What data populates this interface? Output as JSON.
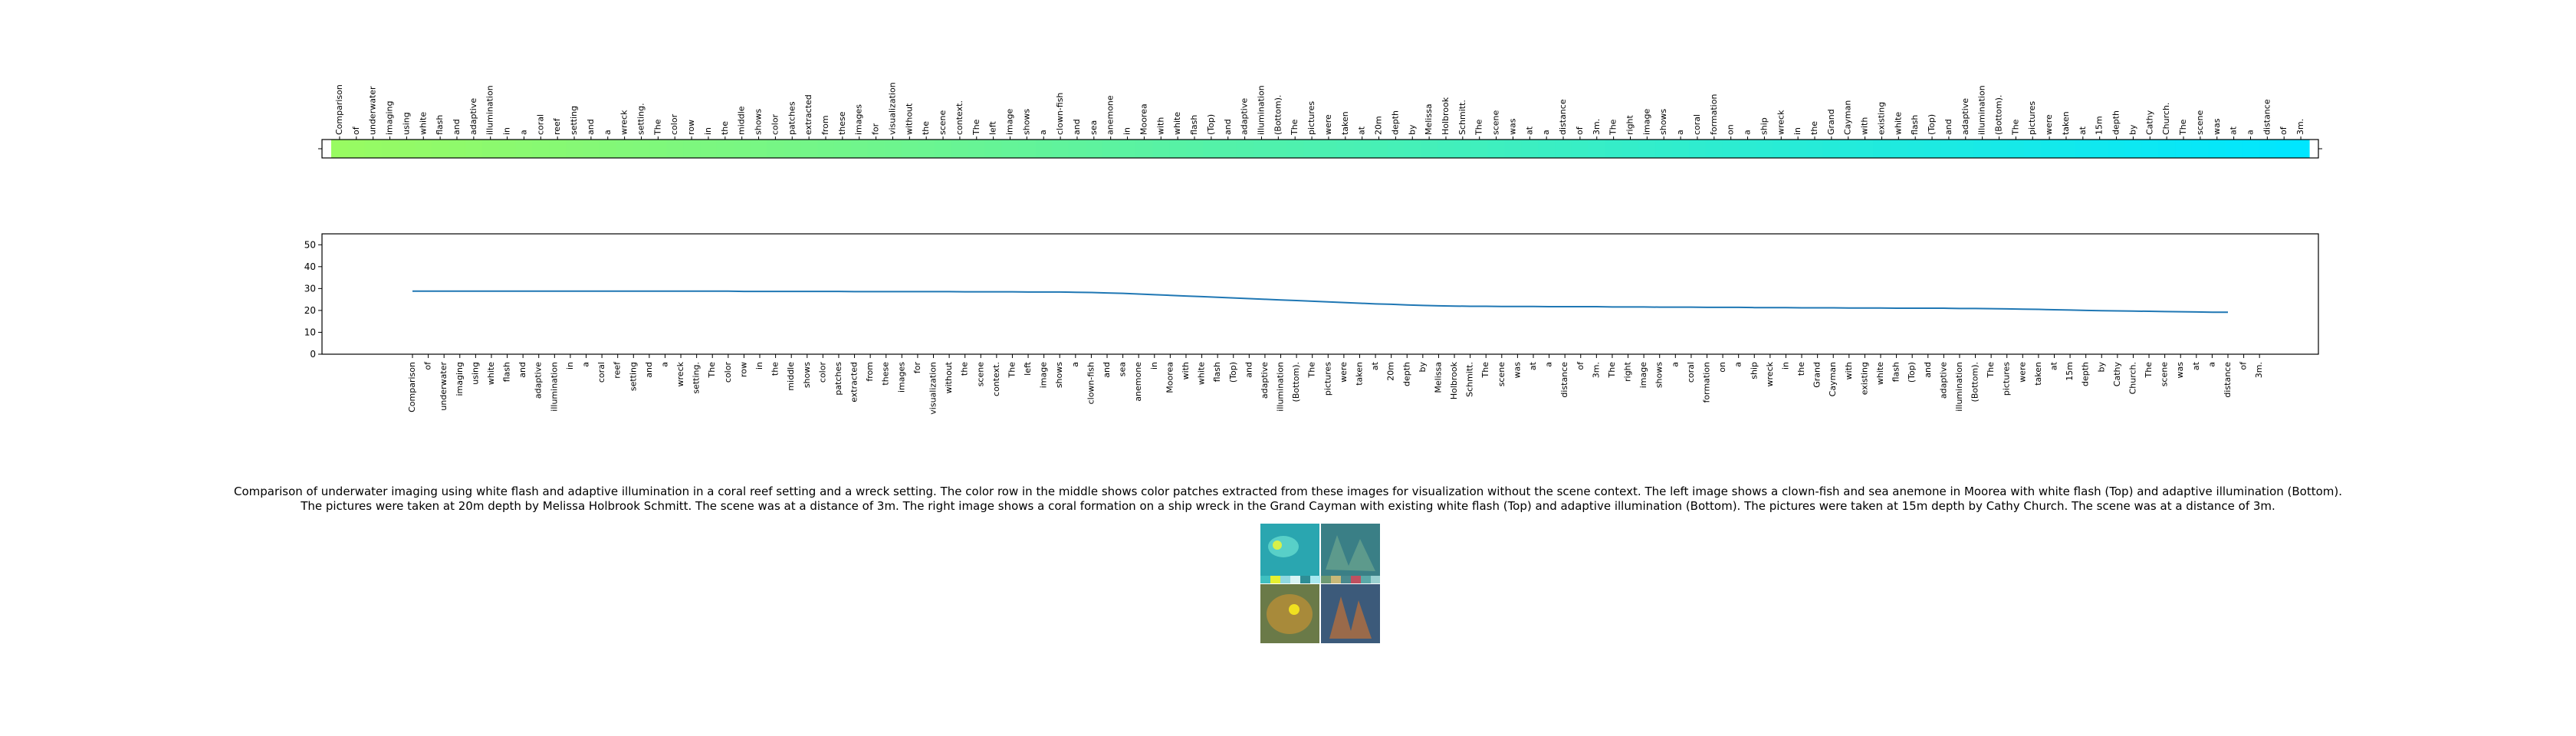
{
  "chart_data": [
    {
      "type": "heatmap",
      "title": "",
      "xlabel": "",
      "ylabel": "",
      "tokens": [
        "Comparison",
        "of",
        "underwater",
        "imaging",
        "using",
        "white",
        "flash",
        "and",
        "adaptive",
        "illumination",
        "in",
        "a",
        "coral",
        "reef",
        "setting",
        "and",
        "a",
        "wreck",
        "setting.",
        "The",
        "color",
        "row",
        "in",
        "the",
        "middle",
        "shows",
        "color",
        "patches",
        "extracted",
        "from",
        "these",
        "images",
        "for",
        "visualization",
        "without",
        "the",
        "scene",
        "context.",
        "The",
        "left",
        "image",
        "shows",
        "a",
        "clown-fish",
        "and",
        "sea",
        "anemone",
        "in",
        "Moorea",
        "with",
        "white",
        "flash",
        "(Top)",
        "and",
        "adaptive",
        "illumination",
        "(Bottom).",
        "The",
        "pictures",
        "were",
        "taken",
        "at",
        "20m",
        "depth",
        "by",
        "Melissa",
        "Holbrook",
        "Schmitt.",
        "The",
        "scene",
        "was",
        "at",
        "a",
        "distance",
        "of",
        "3m.",
        "The",
        "right",
        "image",
        "shows",
        "a",
        "coral",
        "formation",
        "on",
        "a",
        "ship",
        "wreck",
        "in",
        "the",
        "Grand",
        "Cayman",
        "with",
        "existing",
        "white",
        "flash",
        "(Top)",
        "and",
        "adaptive",
        "illumination",
        "(Bottom).",
        "The",
        "pictures",
        "were",
        "taken",
        "at",
        "15m",
        "depth",
        "by",
        "Cathy",
        "Church.",
        "The",
        "scene",
        "was",
        "at",
        "a",
        "distance",
        "of",
        "3m."
      ],
      "color_start": "#98fb62",
      "color_end": "#00e6ff"
    },
    {
      "type": "line",
      "title": "",
      "xlabel": "",
      "ylabel": "",
      "ylim": [
        0,
        55
      ],
      "yticks": [
        0,
        10,
        20,
        30,
        40,
        50
      ],
      "grid": false,
      "series_color": "#1f77b4",
      "values": [
        28.8,
        28.8,
        28.8,
        28.8,
        28.8,
        28.8,
        28.8,
        28.8,
        28.8,
        28.8,
        28.8,
        28.8,
        28.8,
        28.8,
        28.8,
        28.8,
        28.8,
        28.8,
        28.8,
        28.8,
        28.8,
        28.7,
        28.7,
        28.7,
        28.7,
        28.7,
        28.7,
        28.7,
        28.6,
        28.6,
        28.6,
        28.6,
        28.6,
        28.6,
        28.6,
        28.5,
        28.5,
        28.5,
        28.5,
        28.4,
        28.4,
        28.4,
        28.3,
        28.2,
        28.0,
        27.8,
        27.5,
        27.2,
        26.9,
        26.6,
        26.3,
        26.0,
        25.7,
        25.4,
        25.1,
        24.8,
        24.5,
        24.2,
        23.9,
        23.6,
        23.3,
        23.0,
        22.8,
        22.5,
        22.3,
        22.1,
        22.0,
        21.9,
        21.9,
        21.8,
        21.8,
        21.8,
        21.7,
        21.7,
        21.7,
        21.7,
        21.6,
        21.6,
        21.6,
        21.5,
        21.5,
        21.5,
        21.4,
        21.4,
        21.4,
        21.3,
        21.3,
        21.3,
        21.2,
        21.2,
        21.2,
        21.1,
        21.1,
        21.1,
        21.0,
        21.0,
        21.0,
        21.0,
        20.9,
        20.9,
        20.8,
        20.7,
        20.6,
        20.5,
        20.3,
        20.2,
        20.0,
        19.9,
        19.8,
        19.7,
        19.6,
        19.5,
        19.4,
        19.3,
        19.2,
        19.2
      ]
    }
  ],
  "caption": "Comparison of underwater imaging using white flash and adaptive illumination in a coral reef setting and a wreck setting. The color row in the middle shows color patches extracted from these images for visualization without the scene context. The left image shows a clown-fish and sea anemone in Moorea with white flash (Top) and adaptive illumination (Bottom). The pictures were taken at 20m depth by Melissa Holbrook Schmitt. The scene was at a distance of 3m. The right image shows a coral formation on a ship wreck in the Grand Cayman with existing white flash (Top) and adaptive illumination (Bottom). The pictures were taken at 15m depth by Cathy Church. The scene was at a distance of 3m."
}
